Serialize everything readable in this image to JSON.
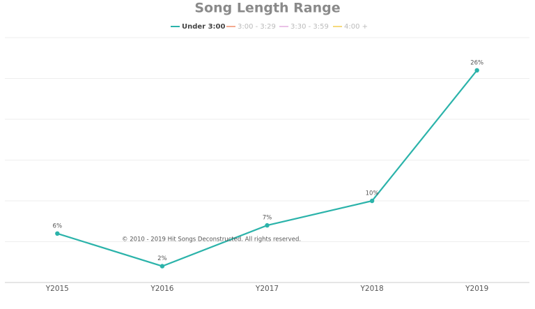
{
  "chart_data": {
    "type": "line",
    "title": "Song Length Range",
    "categories": [
      "Y2015",
      "Y2016",
      "Y2017",
      "Y2018",
      "Y2019"
    ],
    "series": [
      {
        "name": "Under 3:00",
        "color": "#2bb3aa",
        "visible": true,
        "values": [
          6,
          2,
          7,
          10,
          26
        ],
        "value_labels": [
          "6%",
          "2%",
          "7%",
          "10%",
          "26%"
        ]
      },
      {
        "name": "3:00 - 3:29",
        "color": "#f4a98f",
        "visible": false,
        "values": [
          null,
          null,
          null,
          null,
          null
        ]
      },
      {
        "name": "3:30 - 3:59",
        "color": "#e9c2e7",
        "visible": false,
        "values": [
          null,
          null,
          null,
          null,
          null
        ]
      },
      {
        "name": "4:00 +",
        "color": "#f6d97c",
        "visible": false,
        "values": [
          null,
          null,
          null,
          null,
          null
        ]
      }
    ],
    "ylim": [
      0,
      30
    ],
    "yticks": [
      0,
      5,
      10,
      15,
      20,
      25,
      30
    ],
    "grid": true,
    "annotation": "© 2010 - 2019 Hit Songs Deconstructed. All rights reserved."
  }
}
